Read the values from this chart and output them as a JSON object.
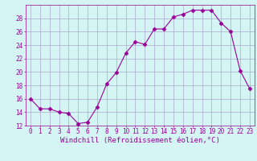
{
  "x": [
    0,
    1,
    2,
    3,
    4,
    5,
    6,
    7,
    8,
    9,
    10,
    11,
    12,
    13,
    14,
    15,
    16,
    17,
    18,
    19,
    20,
    21,
    22,
    23
  ],
  "y": [
    16,
    14.5,
    14.5,
    14,
    13.8,
    12.3,
    12.5,
    14.8,
    18.2,
    19.9,
    22.8,
    24.5,
    24.1,
    26.4,
    26.4,
    28.2,
    28.6,
    29.2,
    29.2,
    29.2,
    27.3,
    26.0,
    20.2,
    17.5
  ],
  "line_color": "#990099",
  "marker": "D",
  "marker_size": 2.5,
  "xlabel": "Windchill (Refroidissement éolien,°C)",
  "xlabel_fontsize": 6.5,
  "ylim": [
    12,
    30
  ],
  "xlim": [
    -0.5,
    23.5
  ],
  "yticks": [
    12,
    14,
    16,
    18,
    20,
    22,
    24,
    26,
    28
  ],
  "xticks": [
    0,
    1,
    2,
    3,
    4,
    5,
    6,
    7,
    8,
    9,
    10,
    11,
    12,
    13,
    14,
    15,
    16,
    17,
    18,
    19,
    20,
    21,
    22,
    23
  ],
  "background_color": "#d5f5f5",
  "grid_color": "#aaaacc",
  "tick_color": "#990099",
  "tick_fontsize": 5.5,
  "label_color": "#990099",
  "linewidth": 0.8
}
